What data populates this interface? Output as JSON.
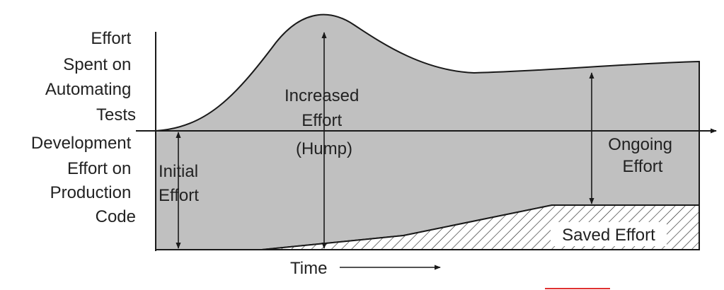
{
  "labels": {
    "upper_axis": [
      "Effort",
      "Spent on",
      "Automating",
      "Tests"
    ],
    "lower_axis": [
      "Development",
      "Effort on",
      "Production",
      "Code"
    ],
    "initial": [
      "Initial",
      "Effort"
    ],
    "increased": [
      "Increased",
      "Effort",
      "(Hump)"
    ],
    "ongoing": [
      "Ongoing",
      "Effort"
    ],
    "saved": "Saved Effort",
    "time": "Time"
  },
  "colors": {
    "fill": "#c0c0c0",
    "line": "#1a1a1a",
    "text": "#222222",
    "background": "#ffffff",
    "red_mark": "#e03030"
  }
}
